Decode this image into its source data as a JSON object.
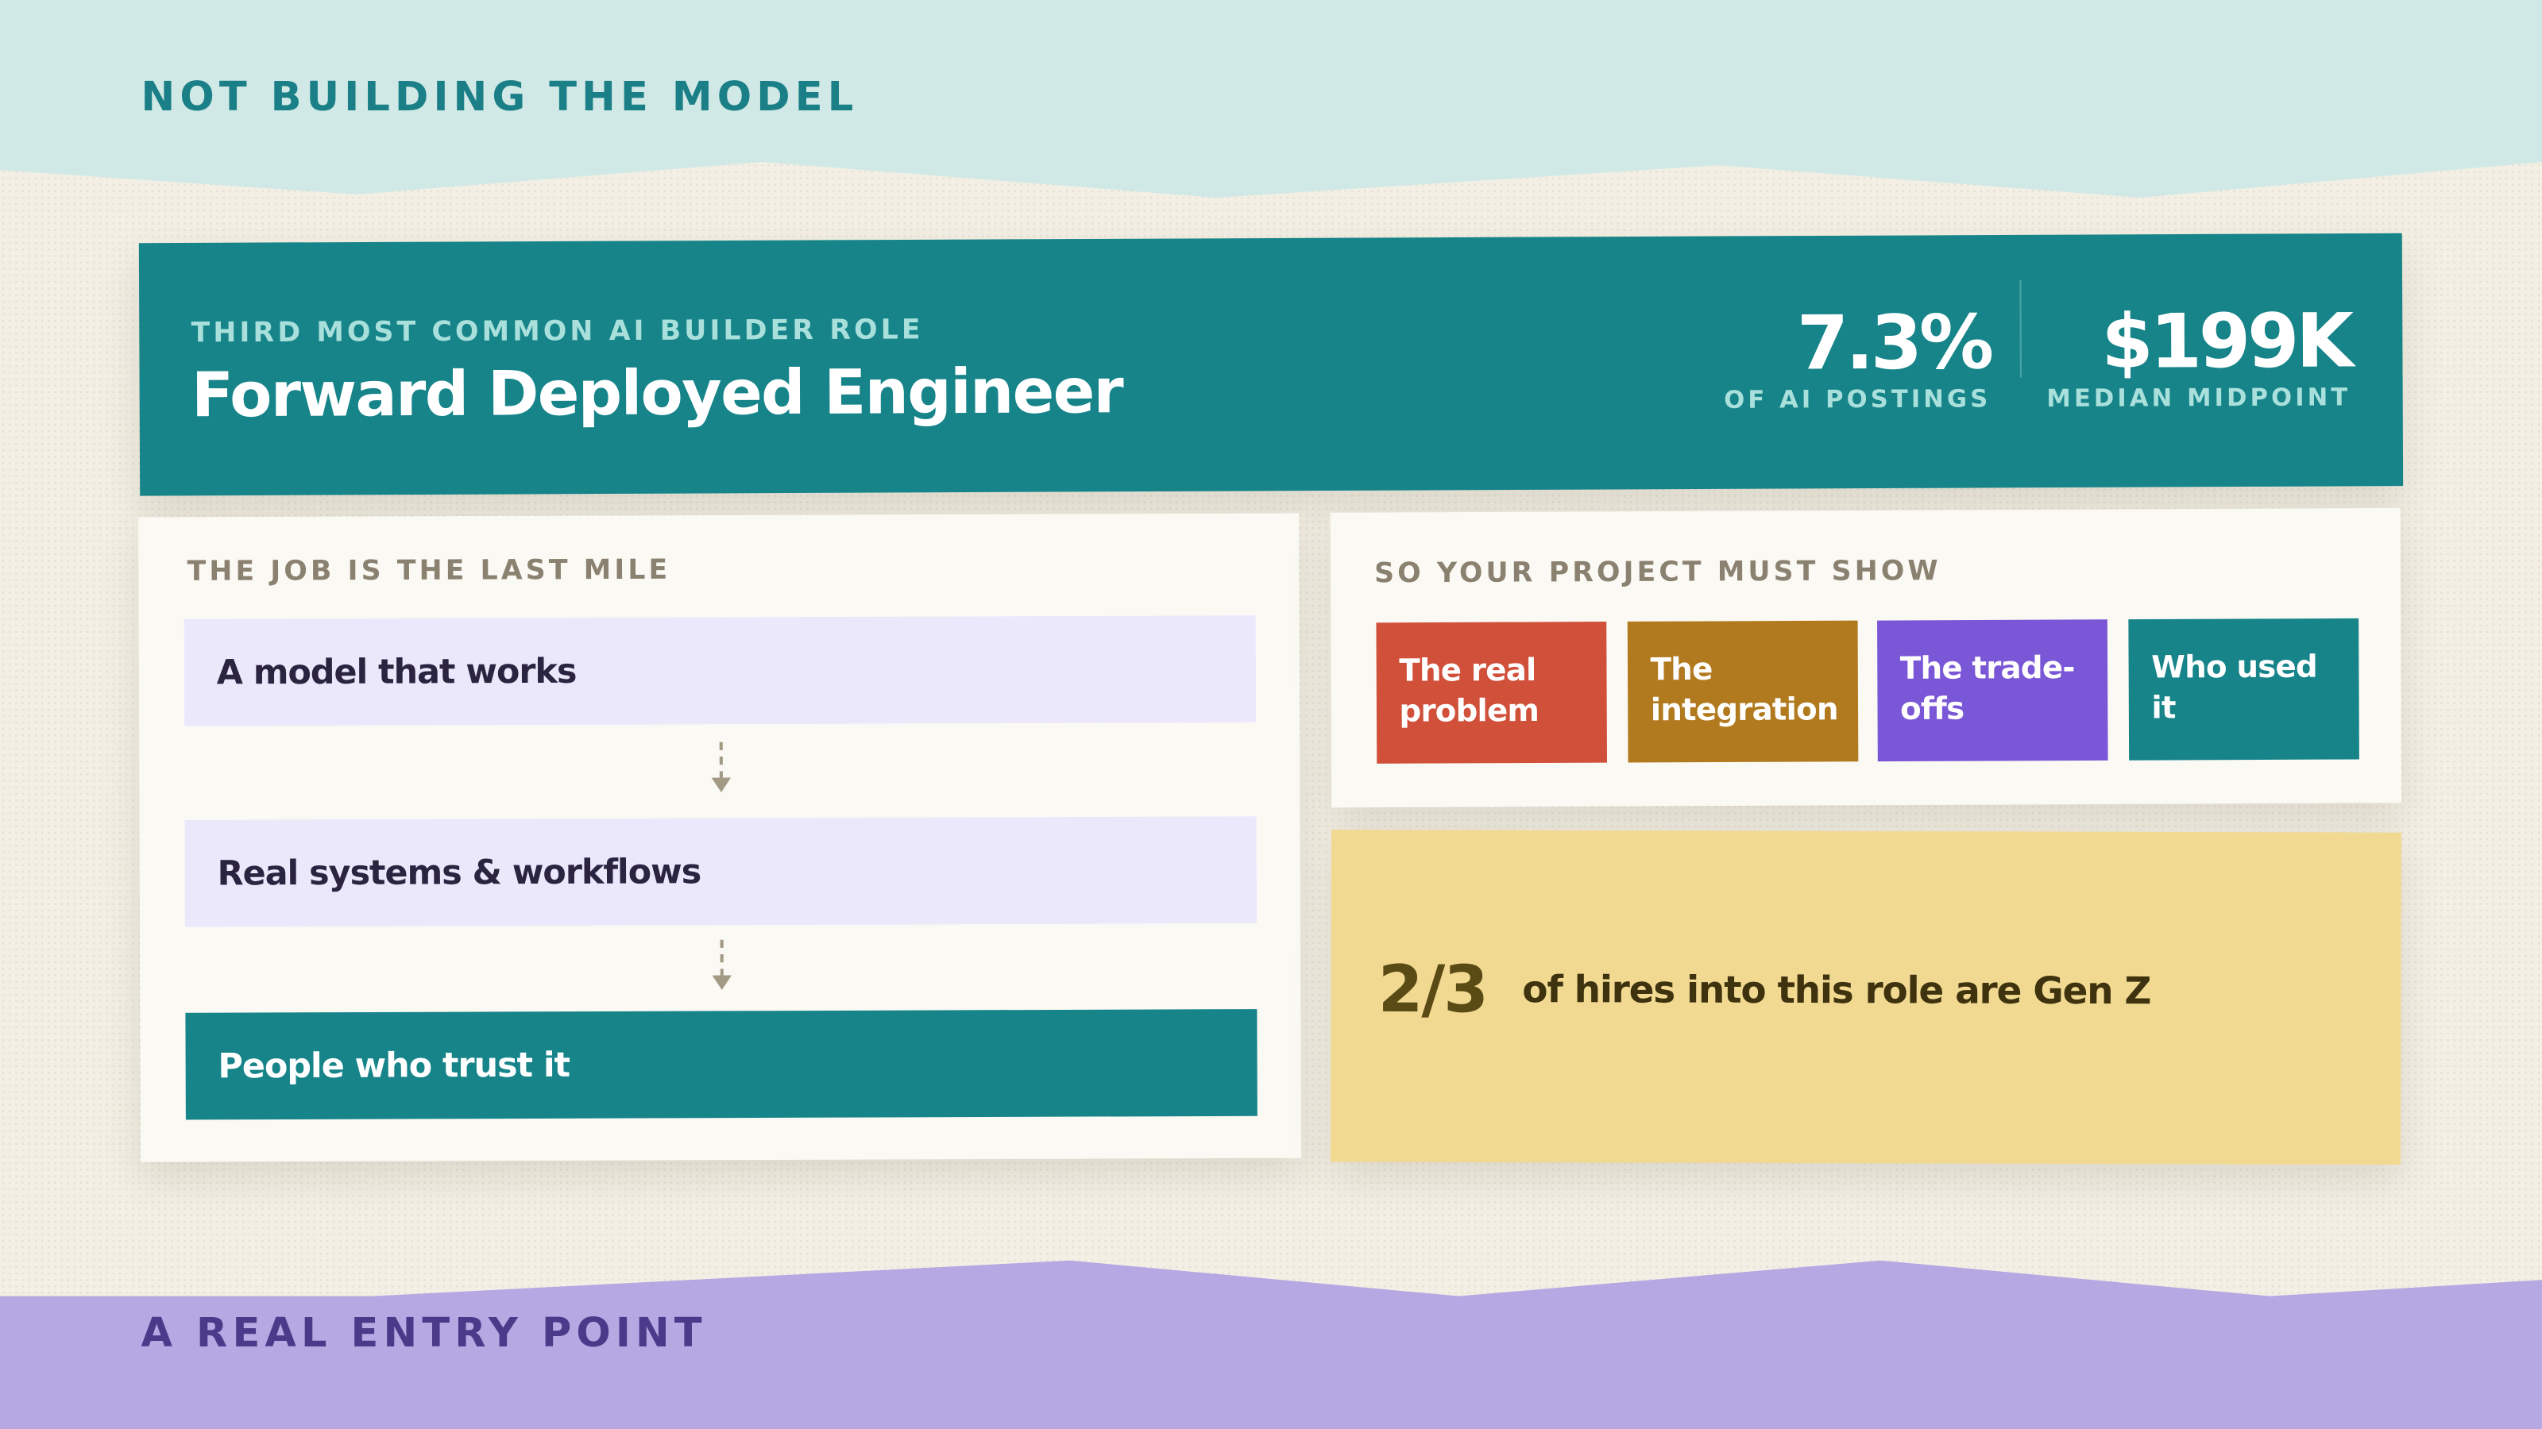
{
  "header": {
    "eyebrow": "NOT BUILDING THE MODEL"
  },
  "role_card": {
    "kicker": "THIRD MOST COMMON AI BUILDER ROLE",
    "title": "Forward Deployed Engineer",
    "stats": [
      {
        "value": "7.3%",
        "label": "OF AI POSTINGS"
      },
      {
        "value": "$199K",
        "label": "MEDIAN MIDPOINT"
      }
    ]
  },
  "job_card": {
    "heading": "THE JOB IS THE LAST MILE",
    "steps": [
      "A model that works",
      "Real systems & workflows",
      "People who trust it"
    ]
  },
  "project_card": {
    "heading": "SO YOUR PROJECT MUST SHOW",
    "tiles": [
      "The real problem",
      "The integration",
      "The trade-offs",
      "Who used it"
    ]
  },
  "stat_card": {
    "value": "2/3",
    "text": "of hires into this role are Gen Z"
  },
  "footer": {
    "label": "A REAL ENTRY POINT"
  }
}
